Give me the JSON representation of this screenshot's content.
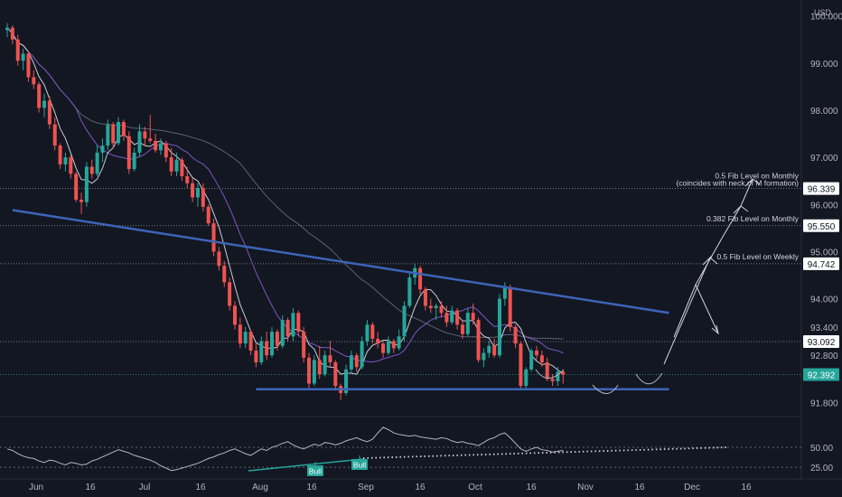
{
  "currency": "USD",
  "chart_data": [
    {
      "type": "candlestick",
      "price_axis": {
        "ticks": [
          "100.000",
          "99.000",
          "98.000",
          "97.000",
          "96.000",
          "95.000",
          "94.000",
          "93.400",
          "92.800",
          "91.800"
        ],
        "tick_values": [
          100.0,
          99.0,
          98.0,
          97.0,
          96.0,
          95.0,
          94.0,
          93.4,
          92.8,
          91.8
        ],
        "range": [
          91.5,
          100.3
        ]
      },
      "time_axis": {
        "ticks": [
          "Jun",
          "16",
          "Jul",
          "16",
          "Aug",
          "16",
          "Sep",
          "16",
          "Oct",
          "16",
          "Nov",
          "16",
          "Dec",
          "16"
        ]
      },
      "ohlc": [
        [
          99.7,
          99.85,
          99.55,
          99.75
        ],
        [
          99.75,
          99.8,
          99.4,
          99.5
        ],
        [
          99.5,
          99.6,
          98.95,
          99.05
        ],
        [
          99.05,
          99.3,
          98.85,
          99.2
        ],
        [
          99.2,
          99.25,
          98.6,
          98.7
        ],
        [
          98.7,
          98.85,
          98.45,
          98.55
        ],
        [
          98.55,
          98.6,
          97.95,
          98.05
        ],
        [
          98.05,
          98.35,
          97.85,
          98.2
        ],
        [
          98.2,
          98.3,
          97.6,
          97.7
        ],
        [
          97.7,
          97.85,
          97.15,
          97.25
        ],
        [
          97.25,
          97.3,
          96.75,
          96.85
        ],
        [
          96.85,
          97.1,
          96.7,
          97.0
        ],
        [
          97.0,
          97.05,
          96.55,
          96.65
        ],
        [
          96.65,
          96.7,
          96.05,
          96.1
        ],
        [
          96.1,
          96.25,
          95.8,
          96.05
        ],
        [
          96.05,
          96.9,
          95.95,
          96.8
        ],
        [
          96.8,
          96.95,
          96.55,
          96.65
        ],
        [
          96.65,
          97.25,
          96.6,
          97.1
        ],
        [
          97.1,
          97.4,
          96.9,
          97.25
        ],
        [
          97.25,
          97.8,
          97.15,
          97.7
        ],
        [
          97.7,
          97.75,
          97.2,
          97.3
        ],
        [
          97.3,
          97.85,
          97.25,
          97.75
        ],
        [
          97.75,
          97.8,
          97.35,
          97.45
        ],
        [
          97.45,
          97.55,
          96.65,
          96.75
        ],
        [
          96.75,
          97.2,
          96.7,
          97.1
        ],
        [
          97.1,
          97.7,
          97.0,
          97.55
        ],
        [
          97.55,
          97.65,
          97.25,
          97.4
        ],
        [
          97.4,
          97.9,
          97.3,
          97.35
        ],
        [
          97.35,
          97.5,
          97.1,
          97.15
        ],
        [
          97.15,
          97.4,
          97.05,
          97.3
        ],
        [
          97.3,
          97.35,
          96.9,
          97.0
        ],
        [
          97.0,
          97.2,
          96.6,
          96.7
        ],
        [
          96.7,
          97.1,
          96.6,
          96.95
        ],
        [
          96.95,
          97.0,
          96.5,
          96.6
        ],
        [
          96.6,
          96.8,
          96.35,
          96.45
        ],
        [
          96.45,
          96.55,
          96.05,
          96.15
        ],
        [
          96.15,
          96.45,
          95.95,
          96.35
        ],
        [
          96.35,
          96.45,
          95.85,
          95.95
        ],
        [
          95.95,
          96.0,
          95.55,
          95.6
        ],
        [
          95.6,
          95.7,
          94.9,
          95.0
        ],
        [
          95.0,
          95.1,
          94.6,
          94.7
        ],
        [
          94.7,
          94.8,
          94.25,
          94.35
        ],
        [
          94.35,
          94.45,
          93.75,
          93.85
        ],
        [
          93.85,
          93.95,
          93.35,
          93.45
        ],
        [
          93.45,
          93.6,
          92.95,
          93.05
        ],
        [
          93.05,
          93.4,
          92.95,
          93.3
        ],
        [
          93.3,
          93.35,
          92.8,
          92.9
        ],
        [
          92.9,
          93.05,
          92.55,
          92.65
        ],
        [
          92.65,
          93.2,
          92.6,
          93.1
        ],
        [
          93.1,
          93.3,
          92.7,
          92.8
        ],
        [
          92.8,
          93.4,
          92.75,
          93.3
        ],
        [
          93.3,
          93.35,
          92.9,
          93.0
        ],
        [
          93.0,
          93.65,
          92.95,
          93.55
        ],
        [
          93.55,
          93.6,
          93.1,
          93.2
        ],
        [
          93.2,
          93.8,
          93.1,
          93.7
        ],
        [
          93.7,
          93.75,
          93.2,
          93.3
        ],
        [
          93.3,
          93.4,
          92.65,
          92.75
        ],
        [
          92.75,
          92.85,
          92.1,
          92.2
        ],
        [
          92.2,
          92.8,
          92.15,
          92.7
        ],
        [
          92.7,
          93.0,
          92.3,
          92.4
        ],
        [
          92.4,
          92.9,
          92.35,
          92.8
        ],
        [
          92.8,
          93.1,
          92.55,
          92.65
        ],
        [
          92.65,
          92.7,
          92.05,
          92.15
        ],
        [
          92.15,
          92.2,
          91.85,
          92.0
        ],
        [
          92.0,
          92.6,
          91.95,
          92.5
        ],
        [
          92.5,
          92.9,
          92.4,
          92.8
        ],
        [
          92.8,
          92.85,
          92.45,
          92.55
        ],
        [
          92.55,
          93.2,
          92.5,
          93.1
        ],
        [
          93.1,
          93.55,
          93.0,
          93.45
        ],
        [
          93.45,
          93.5,
          93.05,
          93.15
        ],
        [
          93.15,
          93.3,
          92.95,
          93.05
        ],
        [
          93.05,
          93.1,
          92.75,
          92.85
        ],
        [
          92.85,
          93.2,
          92.8,
          93.1
        ],
        [
          93.1,
          93.15,
          92.85,
          92.95
        ],
        [
          92.95,
          93.35,
          92.9,
          93.2
        ],
        [
          93.2,
          93.95,
          93.1,
          93.85
        ],
        [
          93.85,
          94.55,
          93.8,
          94.45
        ],
        [
          94.45,
          94.75,
          94.3,
          94.65
        ],
        [
          94.65,
          94.7,
          94.1,
          94.2
        ],
        [
          94.2,
          94.25,
          93.75,
          93.85
        ],
        [
          93.85,
          94.0,
          93.7,
          93.8
        ],
        [
          93.8,
          93.9,
          93.55,
          93.85
        ],
        [
          93.85,
          93.95,
          93.6,
          93.7
        ],
        [
          93.7,
          93.85,
          93.4,
          93.5
        ],
        [
          93.5,
          93.85,
          93.45,
          93.75
        ],
        [
          93.75,
          93.8,
          93.35,
          93.45
        ],
        [
          93.45,
          93.55,
          93.15,
          93.25
        ],
        [
          93.25,
          93.8,
          93.2,
          93.7
        ],
        [
          93.7,
          93.9,
          93.45,
          93.55
        ],
        [
          93.55,
          93.6,
          92.65,
          92.7
        ],
        [
          92.7,
          92.95,
          92.55,
          92.85
        ],
        [
          92.85,
          93.1,
          92.75,
          93.0
        ],
        [
          93.0,
          93.15,
          92.75,
          92.8
        ],
        [
          92.8,
          94.1,
          92.75,
          94.0
        ],
        [
          94.0,
          94.35,
          93.85,
          94.25
        ],
        [
          94.25,
          94.3,
          93.3,
          93.4
        ],
        [
          93.4,
          93.45,
          92.95,
          93.05
        ],
        [
          93.05,
          93.1,
          92.1,
          92.15
        ],
        [
          92.15,
          92.55,
          92.1,
          92.5
        ],
        [
          92.5,
          92.95,
          92.45,
          92.9
        ],
        [
          92.9,
          93.0,
          92.7,
          92.8
        ],
        [
          92.8,
          92.9,
          92.55,
          92.65
        ],
        [
          92.65,
          92.75,
          92.25,
          92.3
        ],
        [
          92.3,
          92.4,
          92.15,
          92.25
        ],
        [
          92.25,
          92.55,
          92.15,
          92.45
        ],
        [
          92.45,
          92.5,
          92.2,
          92.39
        ]
      ],
      "moving_averages": [
        {
          "name": "short",
          "color": "#c9cdd6",
          "period": 5
        },
        {
          "name": "mid",
          "color": "#7e57c2",
          "period": 14
        },
        {
          "name": "long",
          "color": "#5d6270",
          "period": 45
        }
      ],
      "trend_lines": [
        {
          "color": "#3d64b8",
          "from": [
            1,
            95.88
          ],
          "to": [
            125,
            93.7
          ]
        },
        {
          "color": "#3d64b8",
          "from": [
            47,
            92.08
          ],
          "to": [
            125,
            92.08
          ]
        }
      ],
      "price_levels": [
        {
          "label": "0.5 Fib Level on Monthly",
          "label2": "(coincides with neck of M formation)",
          "price": "96.339",
          "value": 96.339
        },
        {
          "label": "0.382 Fib Level on Monthly",
          "price": "95.550",
          "value": 95.55
        },
        {
          "label": "0.5 Fib Level on Weekly",
          "price": "94.742",
          "value": 94.742
        },
        {
          "label": "",
          "price": "93.092",
          "value": 93.092
        }
      ],
      "last_price": {
        "price": "92.392",
        "value": 92.392,
        "color": "#26a69a"
      }
    },
    {
      "type": "line",
      "name": "oscillator",
      "ticks": [
        "50.00",
        "25.00"
      ],
      "tick_values": [
        50,
        25
      ],
      "range": [
        15,
        85
      ],
      "values": [
        48,
        46,
        42,
        39,
        37,
        36,
        33,
        31,
        34,
        33,
        30,
        28,
        31,
        30,
        28,
        29,
        33,
        35,
        38,
        41,
        44,
        47,
        45,
        43,
        40,
        38,
        36,
        34,
        31,
        27,
        24,
        21,
        22,
        24,
        26,
        28,
        30,
        33,
        36,
        38,
        41,
        43,
        46,
        48,
        45,
        42,
        40,
        44,
        48,
        46,
        50,
        52,
        55,
        57,
        53,
        50,
        48,
        51,
        54,
        52,
        56,
        55,
        53,
        55,
        58,
        60,
        62,
        59,
        57,
        60,
        68,
        75,
        72,
        68,
        66,
        65,
        64,
        65,
        63,
        62,
        61,
        60,
        62,
        61,
        58,
        56,
        57,
        55,
        54,
        52,
        56,
        60,
        62,
        66,
        68,
        62,
        55,
        48,
        45,
        48,
        50,
        47,
        46,
        44,
        45,
        46
      ],
      "annotations": [
        {
          "label": "Bull",
          "color": "#26a69a"
        },
        {
          "label": "Bull",
          "color": "#26a69a"
        }
      ]
    }
  ]
}
